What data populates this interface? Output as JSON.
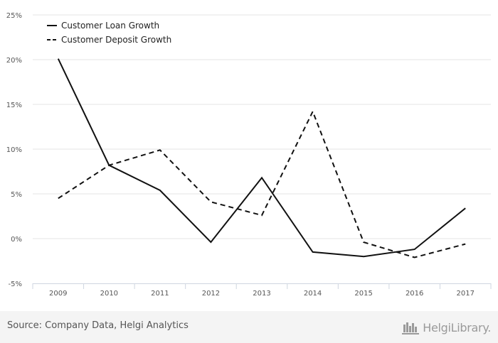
{
  "chart_data": {
    "type": "line",
    "categories": [
      "2009",
      "2010",
      "2011",
      "2012",
      "2013",
      "2014",
      "2015",
      "2016",
      "2017"
    ],
    "series": [
      {
        "name": "Customer Loan Growth",
        "values": [
          20.1,
          8.2,
          5.4,
          -0.4,
          6.8,
          -1.5,
          -2.0,
          -1.2,
          3.4
        ],
        "style": "solid",
        "color": "#111111"
      },
      {
        "name": "Customer Deposit Growth",
        "values": [
          4.5,
          8.2,
          9.9,
          4.1,
          2.6,
          14.2,
          -0.4,
          -2.1,
          -0.6
        ],
        "style": "dashed",
        "color": "#111111"
      }
    ],
    "ylim": [
      -5,
      25
    ],
    "yticks": [
      -5,
      0,
      5,
      10,
      15,
      20,
      25
    ],
    "ytick_labels": [
      "-5%",
      "0%",
      "5%",
      "10%",
      "15%",
      "20%",
      "25%"
    ],
    "grid": true,
    "legend_position": "top-left"
  },
  "footer": {
    "source": "Source: Company Data, Helgi Analytics",
    "brand": "HelgiLibrary."
  }
}
